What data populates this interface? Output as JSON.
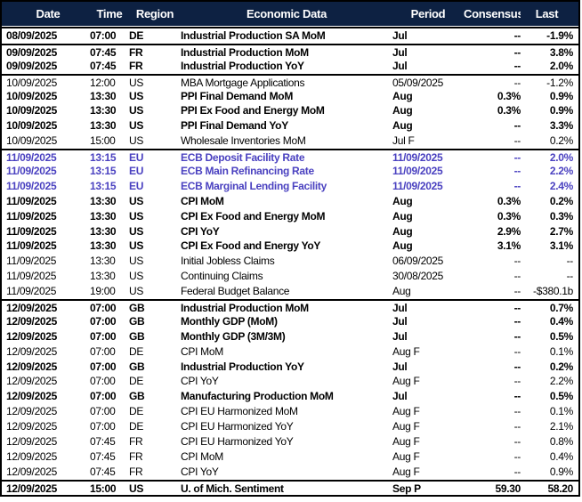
{
  "colors": {
    "header_bg": "#0d2142",
    "header_text": "#ffffff",
    "highlight": "#4a41c0",
    "text": "#000000",
    "border": "#000000"
  },
  "header": {
    "columns": [
      "Date",
      "Time",
      "Region",
      "Economic Data",
      "Period",
      "Consensus",
      "Last"
    ]
  },
  "rows": [
    {
      "date": "08/09/2025",
      "time": "07:00",
      "region": "DE",
      "name": "Industrial Production SA MoM",
      "period": "Jul",
      "consensus": "--",
      "last": "-1.9%",
      "bold": true,
      "highlight": false,
      "group_start": false
    },
    {
      "date": "09/09/2025",
      "time": "07:45",
      "region": "FR",
      "name": "Industrial Production MoM",
      "period": "Jul",
      "consensus": "--",
      "last": "3.8%",
      "bold": true,
      "highlight": false,
      "group_start": true
    },
    {
      "date": "09/09/2025",
      "time": "07:45",
      "region": "FR",
      "name": "Industrial Production YoY",
      "period": "Jul",
      "consensus": "--",
      "last": "2.0%",
      "bold": true,
      "highlight": false,
      "group_start": false
    },
    {
      "date": "10/09/2025",
      "time": "12:00",
      "region": "US",
      "name": "MBA Mortgage Applications",
      "period": "05/09/2025",
      "consensus": "--",
      "last": "-1.2%",
      "bold": false,
      "highlight": false,
      "group_start": true
    },
    {
      "date": "10/09/2025",
      "time": "13:30",
      "region": "US",
      "name": "PPI Final Demand MoM",
      "period": "Aug",
      "consensus": "0.3%",
      "last": "0.9%",
      "bold": true,
      "highlight": false,
      "group_start": false
    },
    {
      "date": "10/09/2025",
      "time": "13:30",
      "region": "US",
      "name": "PPI Ex Food and Energy MoM",
      "period": "Aug",
      "consensus": "0.3%",
      "last": "0.9%",
      "bold": true,
      "highlight": false,
      "group_start": false
    },
    {
      "date": "10/09/2025",
      "time": "13:30",
      "region": "US",
      "name": "PPI Final Demand YoY",
      "period": "Aug",
      "consensus": "--",
      "last": "3.3%",
      "bold": true,
      "highlight": false,
      "group_start": false
    },
    {
      "date": "10/09/2025",
      "time": "15:00",
      "region": "US",
      "name": "Wholesale Inventories MoM",
      "period": "Jul F",
      "consensus": "--",
      "last": "0.2%",
      "bold": false,
      "highlight": false,
      "group_start": false
    },
    {
      "date": "11/09/2025",
      "time": "13:15",
      "region": "EU",
      "name": "ECB Deposit Facility Rate",
      "period": "11/09/2025",
      "consensus": "--",
      "last": "2.0%",
      "bold": true,
      "highlight": true,
      "group_start": true
    },
    {
      "date": "11/09/2025",
      "time": "13:15",
      "region": "EU",
      "name": "ECB Main Refinancing Rate",
      "period": "11/09/2025",
      "consensus": "--",
      "last": "2.2%",
      "bold": true,
      "highlight": true,
      "group_start": false
    },
    {
      "date": "11/09/2025",
      "time": "13:15",
      "region": "EU",
      "name": "ECB Marginal Lending Facility",
      "period": "11/09/2025",
      "consensus": "--",
      "last": "2.4%",
      "bold": true,
      "highlight": true,
      "group_start": false
    },
    {
      "date": "11/09/2025",
      "time": "13:30",
      "region": "US",
      "name": "CPI MoM",
      "period": "Aug",
      "consensus": "0.3%",
      "last": "0.2%",
      "bold": true,
      "highlight": false,
      "group_start": false
    },
    {
      "date": "11/09/2025",
      "time": "13:30",
      "region": "US",
      "name": "CPI Ex Food and Energy MoM",
      "period": "Aug",
      "consensus": "0.3%",
      "last": "0.3%",
      "bold": true,
      "highlight": false,
      "group_start": false
    },
    {
      "date": "11/09/2025",
      "time": "13:30",
      "region": "US",
      "name": "CPI YoY",
      "period": "Aug",
      "consensus": "2.9%",
      "last": "2.7%",
      "bold": true,
      "highlight": false,
      "group_start": false
    },
    {
      "date": "11/09/2025",
      "time": "13:30",
      "region": "US",
      "name": "CPI Ex Food and Energy YoY",
      "period": "Aug",
      "consensus": "3.1%",
      "last": "3.1%",
      "bold": true,
      "highlight": false,
      "group_start": false
    },
    {
      "date": "11/09/2025",
      "time": "13:30",
      "region": "US",
      "name": "Initial Jobless Claims",
      "period": "06/09/2025",
      "consensus": "--",
      "last": "--",
      "bold": false,
      "highlight": false,
      "group_start": false
    },
    {
      "date": "11/09/2025",
      "time": "13:30",
      "region": "US",
      "name": "Continuing Claims",
      "period": "30/08/2025",
      "consensus": "--",
      "last": "--",
      "bold": false,
      "highlight": false,
      "group_start": false
    },
    {
      "date": "11/09/2025",
      "time": "19:00",
      "region": "US",
      "name": "Federal Budget Balance",
      "period": "Aug",
      "consensus": "--",
      "last": "-$380.1b",
      "bold": false,
      "highlight": false,
      "group_start": false
    },
    {
      "date": "12/09/2025",
      "time": "07:00",
      "region": "GB",
      "name": "Industrial Production MoM",
      "period": "Jul",
      "consensus": "--",
      "last": "0.7%",
      "bold": true,
      "highlight": false,
      "group_start": true
    },
    {
      "date": "12/09/2025",
      "time": "07:00",
      "region": "GB",
      "name": "Monthly GDP (MoM)",
      "period": "Jul",
      "consensus": "--",
      "last": "0.4%",
      "bold": true,
      "highlight": false,
      "group_start": false
    },
    {
      "date": "12/09/2025",
      "time": "07:00",
      "region": "GB",
      "name": "Monthly GDP (3M/3M)",
      "period": "Jul",
      "consensus": "--",
      "last": "0.5%",
      "bold": true,
      "highlight": false,
      "group_start": false
    },
    {
      "date": "12/09/2025",
      "time": "07:00",
      "region": "DE",
      "name": "CPI MoM",
      "period": "Aug F",
      "consensus": "--",
      "last": "0.1%",
      "bold": false,
      "highlight": false,
      "group_start": false
    },
    {
      "date": "12/09/2025",
      "time": "07:00",
      "region": "GB",
      "name": "Industrial Production YoY",
      "period": "Jul",
      "consensus": "--",
      "last": "0.2%",
      "bold": true,
      "highlight": false,
      "group_start": false
    },
    {
      "date": "12/09/2025",
      "time": "07:00",
      "region": "DE",
      "name": "CPI YoY",
      "period": "Aug F",
      "consensus": "--",
      "last": "2.2%",
      "bold": false,
      "highlight": false,
      "group_start": false
    },
    {
      "date": "12/09/2025",
      "time": "07:00",
      "region": "GB",
      "name": "Manufacturing Production MoM",
      "period": "Jul",
      "consensus": "--",
      "last": "0.5%",
      "bold": true,
      "highlight": false,
      "group_start": false
    },
    {
      "date": "12/09/2025",
      "time": "07:00",
      "region": "DE",
      "name": "CPI EU Harmonized MoM",
      "period": "Aug F",
      "consensus": "--",
      "last": "0.1%",
      "bold": false,
      "highlight": false,
      "group_start": false
    },
    {
      "date": "12/09/2025",
      "time": "07:00",
      "region": "DE",
      "name": "CPI EU Harmonized YoY",
      "period": "Aug F",
      "consensus": "--",
      "last": "2.1%",
      "bold": false,
      "highlight": false,
      "group_start": false
    },
    {
      "date": "12/09/2025",
      "time": "07:45",
      "region": "FR",
      "name": "CPI EU Harmonized YoY",
      "period": "Aug F",
      "consensus": "--",
      "last": "0.8%",
      "bold": false,
      "highlight": false,
      "group_start": false
    },
    {
      "date": "12/09/2025",
      "time": "07:45",
      "region": "FR",
      "name": "CPI MoM",
      "period": "Aug F",
      "consensus": "--",
      "last": "0.4%",
      "bold": false,
      "highlight": false,
      "group_start": false
    },
    {
      "date": "12/09/2025",
      "time": "07:45",
      "region": "FR",
      "name": "CPI YoY",
      "period": "Aug F",
      "consensus": "--",
      "last": "0.9%",
      "bold": false,
      "highlight": false,
      "group_start": false
    },
    {
      "date": "12/09/2025",
      "time": "15:00",
      "region": "US",
      "name": "U. of Mich. Sentiment",
      "period": "Sep P",
      "consensus": "59.30",
      "last": "58.20",
      "bold": true,
      "highlight": false,
      "group_start": true
    }
  ]
}
